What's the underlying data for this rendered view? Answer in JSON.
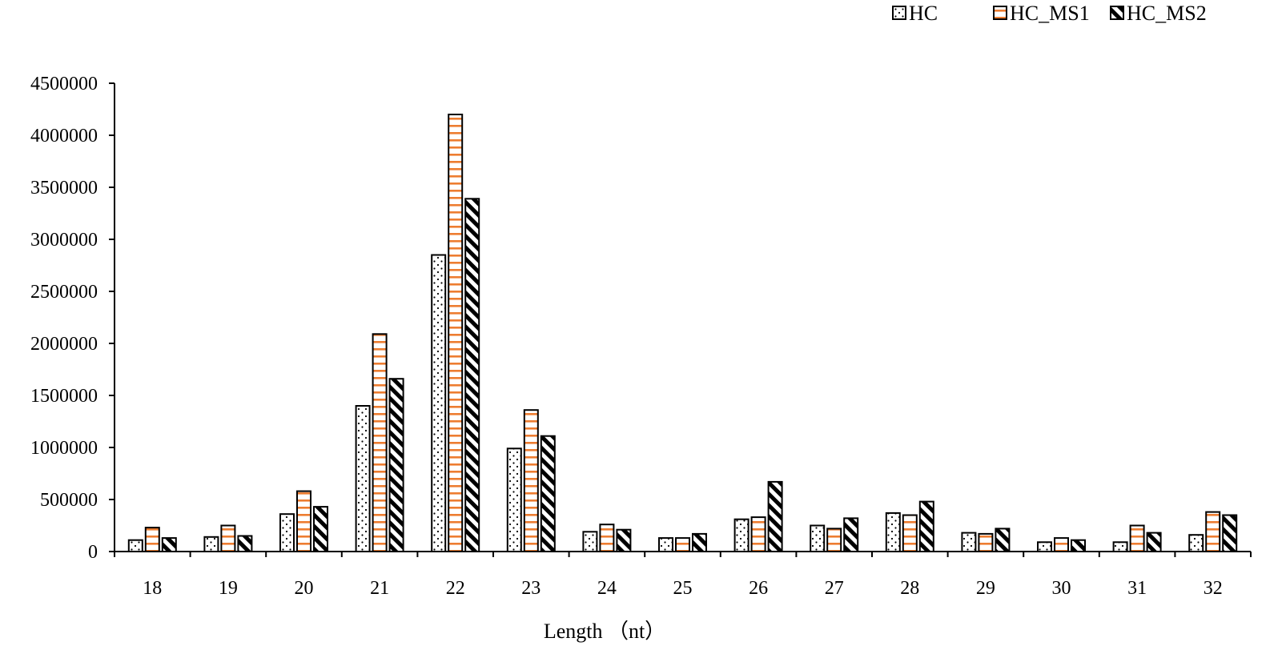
{
  "chart_data": {
    "type": "bar",
    "title": "",
    "xlabel": "Length （nt）",
    "ylabel": "",
    "categories": [
      "18",
      "19",
      "20",
      "21",
      "22",
      "23",
      "24",
      "25",
      "26",
      "27",
      "28",
      "29",
      "30",
      "31",
      "32"
    ],
    "ylim": [
      0,
      4500000
    ],
    "yticks": [
      "0",
      "500000",
      "1000000",
      "1500000",
      "2000000",
      "2500000",
      "3000000",
      "3500000",
      "4000000",
      "4500000"
    ],
    "legend_position": "top-right",
    "grid": false,
    "series": [
      {
        "name": "HC",
        "pattern": "dots",
        "color": "#000000",
        "values": [
          110000,
          140000,
          360000,
          1400000,
          2850000,
          990000,
          190000,
          130000,
          310000,
          250000,
          370000,
          180000,
          90000,
          90000,
          160000
        ]
      },
      {
        "name": "HC_MS1",
        "pattern": "horizontal-stripes",
        "color": "#ed7d31",
        "values": [
          230000,
          250000,
          580000,
          2090000,
          4200000,
          1360000,
          260000,
          130000,
          330000,
          220000,
          350000,
          170000,
          130000,
          250000,
          380000
        ]
      },
      {
        "name": "HC_MS2",
        "pattern": "diagonal-stripes",
        "color": "#000000",
        "values": [
          130000,
          150000,
          430000,
          1660000,
          3390000,
          1110000,
          210000,
          170000,
          670000,
          320000,
          480000,
          220000,
          110000,
          180000,
          350000
        ]
      }
    ]
  }
}
